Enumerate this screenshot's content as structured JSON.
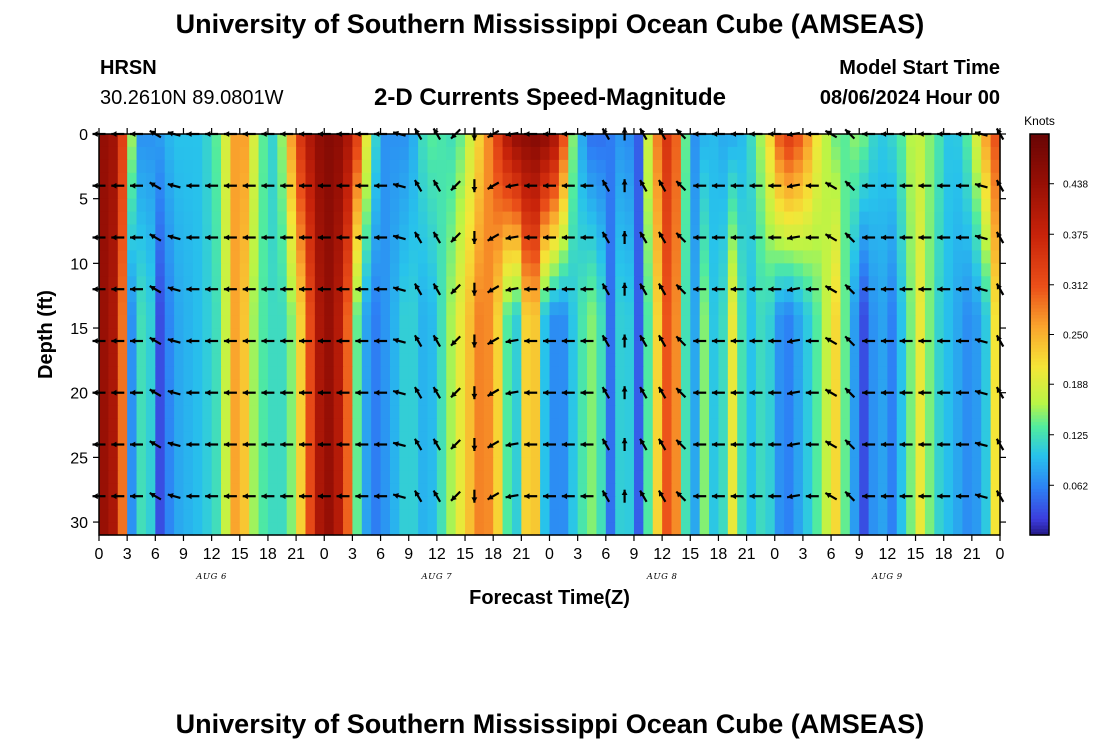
{
  "header": {
    "title": "University of Southern Mississippi Ocean Cube (AMSEAS)",
    "station": "HRSN",
    "coords": "30.2610N  89.0801W",
    "subtitle": "2-D Currents Speed-Magnitude",
    "model_start_label": "Model Start Time",
    "model_start_value": "08/06/2024 Hour 00"
  },
  "footer": {
    "title": "University of Southern Mississippi Ocean Cube (AMSEAS)"
  },
  "chart_data": {
    "type": "heatmap",
    "title": "2-D Currents Speed-Magnitude",
    "xlabel": "Forecast Time(Z)",
    "ylabel": "Depth (ft)",
    "x_unit": "hours from 08/06/2024 00Z",
    "xlim": [
      0,
      96
    ],
    "ylim": [
      31,
      0
    ],
    "x_ticks": [
      0,
      3,
      6,
      9,
      12,
      15,
      18,
      21,
      24,
      27,
      30,
      33,
      36,
      39,
      42,
      45,
      48,
      51,
      54,
      57,
      60,
      63,
      66,
      69,
      72,
      75,
      78,
      81,
      84,
      87,
      90,
      93,
      96
    ],
    "x_tick_labels": [
      "0",
      "3",
      "6",
      "9",
      "12",
      "15",
      "18",
      "21",
      "0",
      "3",
      "6",
      "9",
      "12",
      "15",
      "18",
      "21",
      "0",
      "3",
      "6",
      "9",
      "12",
      "15",
      "18",
      "21",
      "0",
      "3",
      "6",
      "9",
      "12",
      "15",
      "18",
      "21",
      "0"
    ],
    "day_labels": [
      {
        "label": "AUG 6",
        "hour": 12
      },
      {
        "label": "AUG 7",
        "hour": 36
      },
      {
        "label": "AUG 8",
        "hour": 60
      },
      {
        "label": "AUG 9",
        "hour": 84
      }
    ],
    "y_ticks": [
      0,
      5,
      10,
      15,
      20,
      25,
      30
    ],
    "y_tick_labels": [
      "0",
      "5",
      "10",
      "15",
      "20",
      "25",
      "30"
    ],
    "colorbar": {
      "label": "Knots",
      "min": 0,
      "max": 0.5,
      "tick_values": [
        0.062,
        0.125,
        0.188,
        0.25,
        0.312,
        0.375,
        0.438
      ],
      "tick_labels": [
        "0.062",
        "0.125",
        "0.188",
        "0.250",
        "0.312",
        "0.375",
        "0.438"
      ]
    },
    "speed_keyframes_knots": [
      {
        "hour": 0,
        "v": 0.45
      },
      {
        "hour": 2,
        "v": 0.4
      },
      {
        "hour": 3.5,
        "v": 0.07
      },
      {
        "hour": 5,
        "v": 0.15
      },
      {
        "hour": 6.5,
        "v": 0.03
      },
      {
        "hour": 8,
        "v": 0.08
      },
      {
        "hour": 11,
        "v": 0.1
      },
      {
        "hour": 13,
        "v": 0.13
      },
      {
        "hour": 14,
        "v": 0.22
      },
      {
        "hour": 15,
        "v": 0.3
      },
      {
        "hour": 16,
        "v": 0.17
      },
      {
        "hour": 18,
        "v": 0.12
      },
      {
        "hour": 20,
        "v": 0.12
      },
      {
        "hour": 21,
        "v": 0.18
      },
      {
        "hour": 22.5,
        "v": 0.32
      },
      {
        "hour": 24,
        "v": 0.46
      },
      {
        "hour": 26,
        "v": 0.38
      },
      {
        "hour": 27.5,
        "v": 0.14
      },
      {
        "hour": 29,
        "v": 0.05
      },
      {
        "hour": 31,
        "v": 0.08
      },
      {
        "hour": 33,
        "v": 0.12
      },
      {
        "hour": 35,
        "v": 0.08
      },
      {
        "hour": 37,
        "v": 0.14
      },
      {
        "hour": 39,
        "v": 0.22
      },
      {
        "hour": 41,
        "v": 0.3
      },
      {
        "hour": 43,
        "v": 0.2
      },
      {
        "hour": 44,
        "v": 0.07
      },
      {
        "hour": 45,
        "v": 0.15
      },
      {
        "hour": 46,
        "v": 0.3
      },
      {
        "hour": 47.5,
        "v": 0.1
      },
      {
        "hour": 49,
        "v": 0.05
      },
      {
        "hour": 51,
        "v": 0.12
      },
      {
        "hour": 53,
        "v": 0.16
      },
      {
        "hour": 54.5,
        "v": 0.05
      },
      {
        "hour": 56,
        "v": 0.14
      },
      {
        "hour": 57.5,
        "v": 0.04
      },
      {
        "hour": 59,
        "v": 0.18
      },
      {
        "hour": 61,
        "v": 0.35
      },
      {
        "hour": 63,
        "v": 0.05
      },
      {
        "hour": 64.5,
        "v": 0.15
      },
      {
        "hour": 66,
        "v": 0.08
      },
      {
        "hour": 67.5,
        "v": 0.2
      },
      {
        "hour": 69,
        "v": 0.09
      },
      {
        "hour": 71,
        "v": 0.13
      },
      {
        "hour": 73,
        "v": 0.05
      },
      {
        "hour": 75,
        "v": 0.09
      },
      {
        "hour": 77,
        "v": 0.15
      },
      {
        "hour": 78.5,
        "v": 0.22
      },
      {
        "hour": 80,
        "v": 0.1
      },
      {
        "hour": 81.5,
        "v": 0.03
      },
      {
        "hour": 83,
        "v": 0.09
      },
      {
        "hour": 84.5,
        "v": 0.06
      },
      {
        "hour": 86,
        "v": 0.12
      },
      {
        "hour": 87.5,
        "v": 0.2
      },
      {
        "hour": 89,
        "v": 0.12
      },
      {
        "hour": 91,
        "v": 0.09
      },
      {
        "hour": 93,
        "v": 0.06
      },
      {
        "hour": 95,
        "v": 0.12
      },
      {
        "hour": 96,
        "v": 0.3
      }
    ],
    "surface_speed_keyframes_knots": [
      {
        "hour": 0,
        "v": 0.45
      },
      {
        "hour": 2,
        "v": 0.42
      },
      {
        "hour": 4,
        "v": 0.07
      },
      {
        "hour": 6,
        "v": 0.07
      },
      {
        "hour": 8,
        "v": 0.1
      },
      {
        "hour": 11,
        "v": 0.1
      },
      {
        "hour": 13,
        "v": 0.15
      },
      {
        "hour": 15,
        "v": 0.3
      },
      {
        "hour": 17,
        "v": 0.15
      },
      {
        "hour": 19,
        "v": 0.1
      },
      {
        "hour": 21,
        "v": 0.32
      },
      {
        "hour": 23,
        "v": 0.44
      },
      {
        "hour": 25,
        "v": 0.47
      },
      {
        "hour": 27,
        "v": 0.4
      },
      {
        "hour": 28.5,
        "v": 0.2
      },
      {
        "hour": 30,
        "v": 0.07
      },
      {
        "hour": 33,
        "v": 0.07
      },
      {
        "hour": 35,
        "v": 0.14
      },
      {
        "hour": 38,
        "v": 0.12
      },
      {
        "hour": 40,
        "v": 0.2
      },
      {
        "hour": 42,
        "v": 0.3
      },
      {
        "hour": 44,
        "v": 0.44
      },
      {
        "hour": 47,
        "v": 0.47
      },
      {
        "hour": 49,
        "v": 0.4
      },
      {
        "hour": 50.5,
        "v": 0.15
      },
      {
        "hour": 52,
        "v": 0.05
      },
      {
        "hour": 54,
        "v": 0.05
      },
      {
        "hour": 56,
        "v": 0.08
      },
      {
        "hour": 57.5,
        "v": 0.04
      },
      {
        "hour": 59,
        "v": 0.25
      },
      {
        "hour": 61,
        "v": 0.38
      },
      {
        "hour": 63,
        "v": 0.06
      },
      {
        "hour": 65,
        "v": 0.1
      },
      {
        "hour": 67,
        "v": 0.08
      },
      {
        "hour": 69,
        "v": 0.1
      },
      {
        "hour": 71,
        "v": 0.18
      },
      {
        "hour": 73,
        "v": 0.35
      },
      {
        "hour": 75,
        "v": 0.3
      },
      {
        "hour": 77,
        "v": 0.18
      },
      {
        "hour": 79,
        "v": 0.13
      },
      {
        "hour": 81,
        "v": 0.16
      },
      {
        "hour": 83,
        "v": 0.1
      },
      {
        "hour": 85,
        "v": 0.12
      },
      {
        "hour": 87,
        "v": 0.18
      },
      {
        "hour": 89,
        "v": 0.14
      },
      {
        "hour": 91,
        "v": 0.09
      },
      {
        "hour": 93,
        "v": 0.15
      },
      {
        "hour": 95,
        "v": 0.3
      },
      {
        "hour": 96,
        "v": 0.32
      }
    ],
    "vector_depths_ft": [
      0,
      4,
      8,
      12,
      16,
      20,
      24,
      28
    ],
    "vector_hours": [
      0,
      2,
      4,
      6,
      8,
      10,
      12,
      14,
      16,
      18,
      20,
      22,
      24,
      26,
      28,
      30,
      32,
      34,
      36,
      38,
      40,
      42,
      44,
      46,
      48,
      50,
      52,
      54,
      56,
      58,
      60,
      62,
      64,
      66,
      68,
      70,
      72,
      74,
      76,
      78,
      80,
      82,
      84,
      86,
      88,
      90,
      92,
      94,
      96
    ],
    "vector_directions_deg": [
      0,
      0,
      0,
      330,
      345,
      0,
      0,
      0,
      0,
      0,
      0,
      0,
      0,
      0,
      0,
      0,
      345,
      300,
      300,
      45,
      90,
      30,
      10,
      0,
      0,
      0,
      0,
      300,
      270,
      300,
      300,
      315,
      0,
      0,
      0,
      0,
      0,
      10,
      0,
      330,
      315,
      0,
      0,
      0,
      0,
      0,
      0,
      345,
      300
    ]
  }
}
